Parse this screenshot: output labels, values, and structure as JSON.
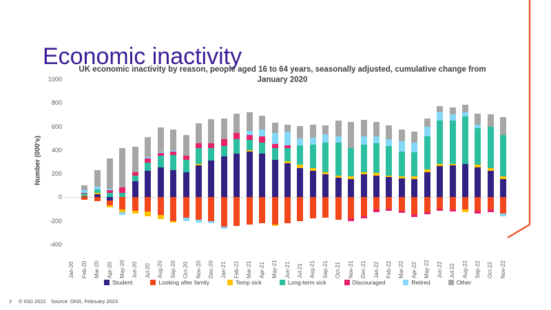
{
  "slide": {
    "title": "Economic inactivity",
    "title_color": "#3A1D96",
    "accent_color": "#E8562E",
    "page_number": "2",
    "footer": {
      "copyright": "© IGD 2022",
      "source": "Source: ONS, February 2023"
    }
  },
  "chart_data": {
    "type": "bar",
    "stacked": true,
    "title": "UK economic inactivity by reason, people aged 16 to 64 years, seasonally adjusted, cumulative change from January 2020",
    "xlabel": "",
    "ylabel": "Number (000's)",
    "ylim": [
      -400,
      1000
    ],
    "yticks": [
      1000,
      800,
      600,
      400,
      200,
      0,
      -200,
      -400
    ],
    "grid": false,
    "legend_position": "bottom",
    "categories": [
      "Jan-20",
      "Feb-20",
      "Mar-20",
      "Apr-20",
      "May-20",
      "Jun-20",
      "Jul-20",
      "Aug-20",
      "Sep-20",
      "Oct-20",
      "Nov-20",
      "Dec-20",
      "Jan-21",
      "Feb-21",
      "Mar-21",
      "Apr-21",
      "May-21",
      "Jun-21",
      "Jul-21",
      "Aug-21",
      "Sep-21",
      "Oct-21",
      "Nov-21",
      "Dec-21",
      "Jan-22",
      "Feb-22",
      "Mar-22",
      "Apr-22",
      "May-22",
      "Jun-22",
      "Jul-22",
      "Aug-22",
      "Sep-22",
      "Oct-22",
      "Nov-22"
    ],
    "series": [
      {
        "name": "Student",
        "color": "#312183",
        "values": [
          0,
          10,
          25,
          -25,
          0,
          135,
          225,
          255,
          230,
          215,
          270,
          310,
          345,
          370,
          385,
          370,
          320,
          290,
          250,
          225,
          195,
          165,
          155,
          195,
          185,
          170,
          160,
          155,
          210,
          265,
          270,
          280,
          255,
          225,
          155
        ]
      },
      {
        "name": "Looking after family",
        "color": "#F2461B",
        "values": [
          0,
          -20,
          -35,
          -45,
          -105,
          -115,
          -120,
          -150,
          -200,
          -170,
          -190,
          -200,
          -250,
          -240,
          -230,
          -220,
          -230,
          -220,
          -200,
          -180,
          -170,
          -190,
          -180,
          -160,
          -100,
          -95,
          -115,
          -145,
          -125,
          -95,
          -105,
          -105,
          -115,
          -105,
          -135
        ]
      },
      {
        "name": "Temp sick",
        "color": "#FFC000",
        "values": [
          0,
          5,
          10,
          -15,
          -20,
          -20,
          -40,
          -35,
          -15,
          0,
          15,
          0,
          0,
          0,
          15,
          0,
          -10,
          15,
          25,
          20,
          20,
          20,
          20,
          20,
          20,
          15,
          15,
          20,
          25,
          20,
          10,
          -20,
          20,
          20,
          20
        ]
      },
      {
        "name": "Long-term sick",
        "color": "#2BBFA0",
        "values": [
          0,
          15,
          30,
          40,
          40,
          50,
          70,
          95,
          130,
          105,
          130,
          105,
          90,
          120,
          85,
          95,
          95,
          110,
          165,
          200,
          250,
          280,
          240,
          230,
          250,
          250,
          215,
          205,
          280,
          365,
          370,
          405,
          310,
          350,
          350
        ]
      },
      {
        "name": "Discouraged",
        "color": "#E8216B",
        "values": [
          0,
          8,
          0,
          20,
          45,
          30,
          35,
          25,
          25,
          35,
          45,
          40,
          60,
          55,
          45,
          50,
          35,
          25,
          0,
          0,
          0,
          0,
          -20,
          -20,
          -25,
          -20,
          -15,
          -20,
          -20,
          -20,
          -15,
          0,
          -20,
          -20,
          0
        ]
      },
      {
        "name": "Retired",
        "color": "#83D7F7",
        "values": [
          0,
          20,
          25,
          10,
          -25,
          0,
          10,
          15,
          15,
          -30,
          -25,
          -20,
          -15,
          0,
          35,
          60,
          95,
          115,
          60,
          60,
          70,
          50,
          0,
          70,
          60,
          60,
          85,
          85,
          85,
          70,
          55,
          35,
          30,
          0,
          -25
        ]
      },
      {
        "name": "Other",
        "color": "#A6A6A6",
        "values": [
          0,
          45,
          140,
          260,
          330,
          215,
          170,
          200,
          175,
          170,
          165,
          205,
          175,
          165,
          155,
          115,
          85,
          60,
          105,
          110,
          75,
          135,
          225,
          140,
          125,
          115,
          100,
          90,
          70,
          55,
          55,
          65,
          95,
          105,
          155
        ]
      }
    ]
  }
}
